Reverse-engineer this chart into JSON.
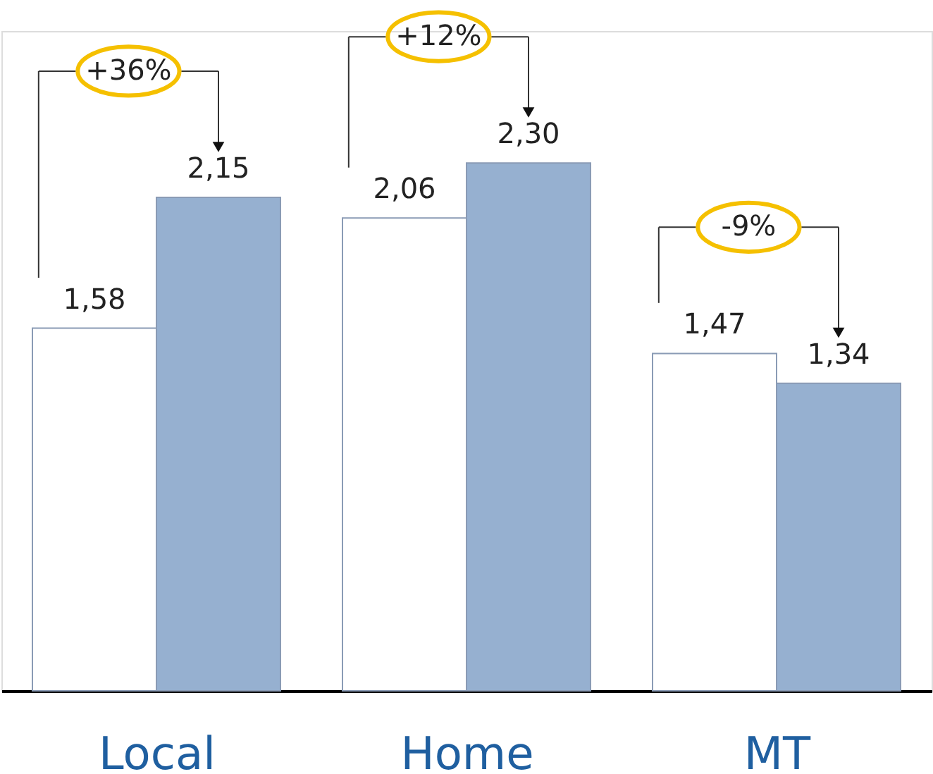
{
  "chart_data": {
    "type": "bar",
    "categories": [
      "Local",
      "Home",
      "MT"
    ],
    "series": [
      {
        "color": "#ffffff",
        "values": [
          1.58,
          2.06,
          1.47
        ],
        "value_labels": [
          "1,58",
          "2,06",
          "1,47"
        ]
      },
      {
        "color": "#96b0d0",
        "values": [
          2.15,
          2.3,
          1.34
        ],
        "value_labels": [
          "2,15",
          "2,30",
          "1,34"
        ]
      }
    ],
    "annotations": [
      "+36%",
      "+12%",
      "-9%"
    ],
    "grid": false,
    "legend": false
  }
}
